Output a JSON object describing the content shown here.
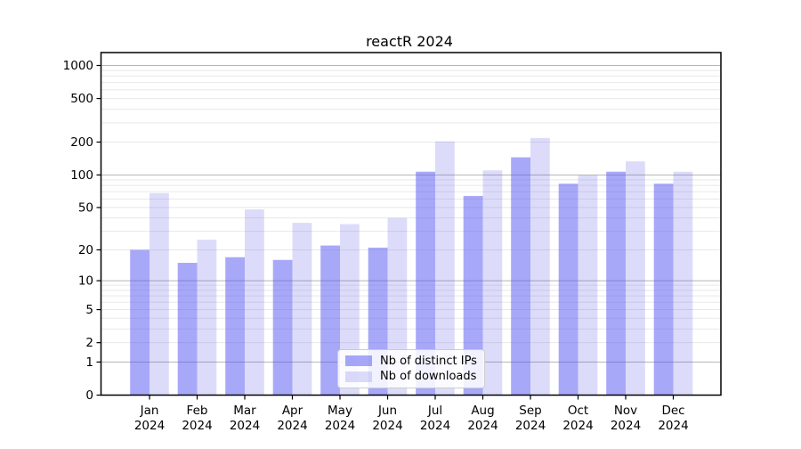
{
  "chart_data": {
    "type": "bar",
    "title": "reactR 2024",
    "x_categories": [
      "Jan",
      "Feb",
      "Mar",
      "Apr",
      "May",
      "Jun",
      "Jul",
      "Aug",
      "Sep",
      "Oct",
      "Nov",
      "Dec"
    ],
    "x_year_label": "2024",
    "series": [
      {
        "name": "Nb of distinct IPs",
        "color": "rgba(81,81,241,0.5)",
        "values": [
          20,
          15,
          17,
          16,
          22,
          21,
          107,
          64,
          145,
          83,
          107,
          83
        ]
      },
      {
        "name": "Nb of downloads",
        "color": "rgba(80,80,230,0.2)",
        "values": [
          68,
          25,
          48,
          36,
          35,
          40,
          203,
          110,
          218,
          99,
          133,
          107
        ]
      }
    ],
    "y_scale": "log1p",
    "ylim": [
      0,
      1000
    ],
    "y_ticks": [
      0,
      1,
      2,
      5,
      10,
      20,
      50,
      100,
      200,
      500,
      1000
    ],
    "y_grid_major": [
      1,
      10,
      100,
      1000
    ],
    "y_grid_minor": [
      2,
      3,
      4,
      5,
      6,
      7,
      8,
      9,
      20,
      30,
      40,
      50,
      60,
      70,
      80,
      90,
      200,
      300,
      400,
      500,
      600,
      700,
      800,
      900
    ],
    "grid": true,
    "legend_position": "bottom-center",
    "colors": {
      "grid_major": "#b5b5b5",
      "grid_minor": "#e8e8e8",
      "frame": "#000000",
      "text": "#000000",
      "background": "#ffffff"
    }
  }
}
